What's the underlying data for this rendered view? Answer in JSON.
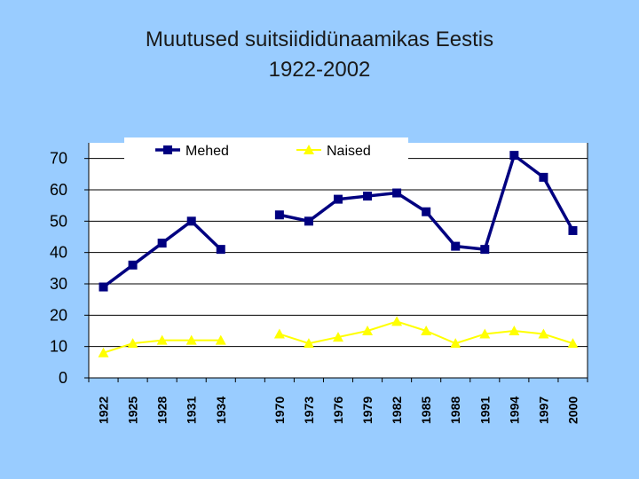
{
  "title_line1": "Muutused suitsiididünaamikas Eestis",
  "title_line2": "1922-2002",
  "chart_data": {
    "type": "line",
    "title": "Muutused suitsiididünaamikas Eestis 1922-2002",
    "categories": [
      "1922",
      "1925",
      "1928",
      "1931",
      "1934",
      "",
      "1970",
      "1973",
      "1976",
      "1979",
      "1982",
      "1985",
      "1988",
      "1991",
      "1994",
      "1997",
      "2000"
    ],
    "ylim": [
      0,
      75
    ],
    "yticks": [
      0,
      10,
      20,
      30,
      40,
      50,
      60,
      70
    ],
    "grid": true,
    "legend_position": "top",
    "series": [
      {
        "name": "Mehed",
        "marker": "square",
        "color": "#000080",
        "values": [
          29,
          36,
          43,
          50,
          41,
          null,
          52,
          50,
          57,
          58,
          59,
          53,
          42,
          41,
          71,
          64,
          47
        ]
      },
      {
        "name": "Naised",
        "marker": "triangle",
        "color": "#ffff00",
        "values": [
          8,
          11,
          12,
          12,
          12,
          null,
          14,
          11,
          13,
          15,
          18,
          15,
          11,
          14,
          15,
          14,
          11
        ]
      }
    ]
  }
}
